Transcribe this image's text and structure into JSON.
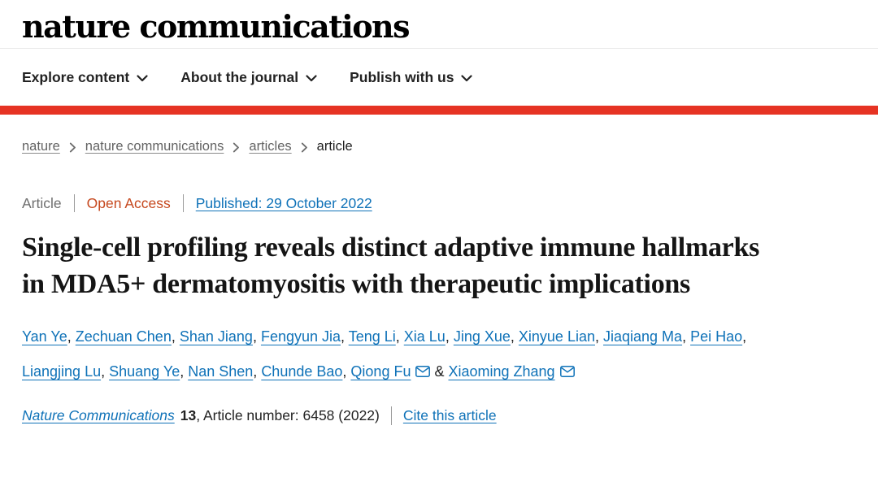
{
  "brand": {
    "logo_text": "nature communications"
  },
  "nav": {
    "items": [
      {
        "label": "Explore content"
      },
      {
        "label": "About the journal"
      },
      {
        "label": "Publish with us"
      }
    ]
  },
  "breadcrumb": {
    "items": [
      {
        "label": "nature",
        "current": false
      },
      {
        "label": "nature communications",
        "current": false
      },
      {
        "label": "articles",
        "current": false
      },
      {
        "label": "article",
        "current": true
      }
    ]
  },
  "meta": {
    "article_type": "Article",
    "access_label": "Open Access",
    "published_label": "Published: 29 October 2022"
  },
  "article": {
    "title": "Single-cell profiling reveals distinct adaptive immune hallmarks in MDA5+ dermatomyositis with therapeutic implications"
  },
  "authors": {
    "names": [
      {
        "name": "Yan Ye"
      },
      {
        "name": "Zechuan Chen"
      },
      {
        "name": "Shan Jiang"
      },
      {
        "name": "Fengyun Jia"
      },
      {
        "name": "Teng Li"
      },
      {
        "name": "Xia Lu"
      },
      {
        "name": "Jing Xue"
      },
      {
        "name": "Xinyue Lian"
      },
      {
        "name": "Jiaqiang Ma"
      },
      {
        "name": "Pei Hao"
      },
      {
        "name": "Liangjing Lu"
      },
      {
        "name": "Shuang Ye"
      },
      {
        "name": "Nan Shen"
      },
      {
        "name": "Chunde Bao"
      },
      {
        "name": "Qiong Fu",
        "email": true
      },
      {
        "name": "Xiaoming Zhang",
        "email": true
      }
    ],
    "separator": ", ",
    "last_separator": " & "
  },
  "citation": {
    "journal": "Nature Communications",
    "volume": "13",
    "suffix": ", Article number: 6458 (2022)",
    "cite_label": "Cite this article"
  },
  "colors": {
    "accent_red": "#e63323",
    "link_blue": "#0f72b8",
    "open_access_orange": "#c6481e"
  }
}
